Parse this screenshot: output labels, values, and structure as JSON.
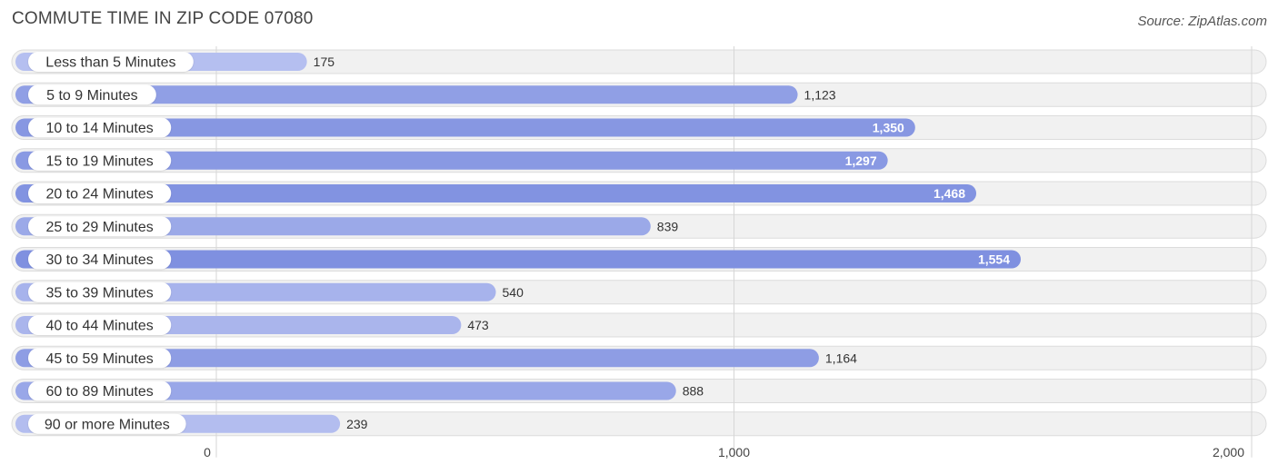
{
  "chart_data": {
    "type": "bar",
    "orientation": "horizontal",
    "title": "COMMUTE TIME IN ZIP CODE 07080",
    "source": "Source: ZipAtlas.com",
    "categories": [
      "Less than 5 Minutes",
      "5 to 9 Minutes",
      "10 to 14 Minutes",
      "15 to 19 Minutes",
      "20 to 24 Minutes",
      "25 to 29 Minutes",
      "30 to 34 Minutes",
      "35 to 39 Minutes",
      "40 to 44 Minutes",
      "45 to 59 Minutes",
      "60 to 89 Minutes",
      "90 or more Minutes"
    ],
    "values": [
      175,
      1123,
      1350,
      1297,
      1468,
      839,
      1554,
      540,
      473,
      1164,
      888,
      239
    ],
    "value_labels": [
      "175",
      "1,123",
      "1,350",
      "1,297",
      "1,468",
      "839",
      "1,554",
      "540",
      "473",
      "1,164",
      "888",
      "239"
    ],
    "xlim": [
      0,
      2000
    ],
    "xticks": [
      0,
      1000,
      2000
    ],
    "xtick_labels": [
      "0",
      "1,000",
      "2,000"
    ],
    "xlabel": "",
    "ylabel": "",
    "grid": true,
    "colors": {
      "bar_light": "#b6c0f0",
      "bar_dark": "#7f90e0",
      "row_background": "#f1f1f1",
      "value_text": "#333333",
      "value_text_inside": "#ffffff"
    }
  }
}
